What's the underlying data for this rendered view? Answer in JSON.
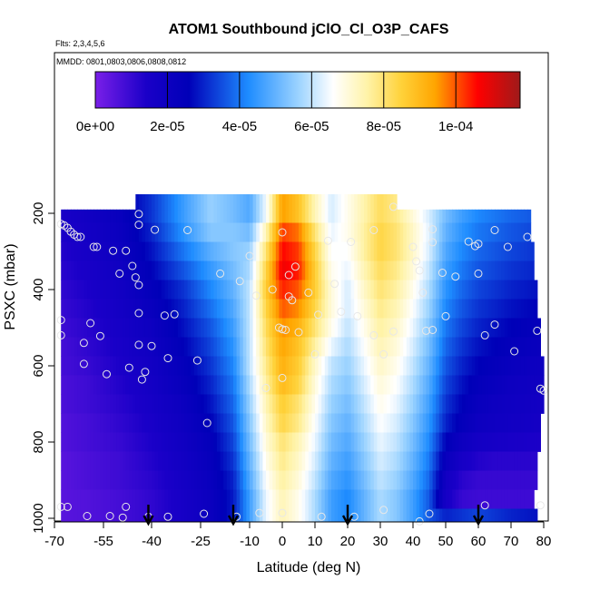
{
  "chart_data": {
    "type": "heatmap",
    "title": "ATOM1 Southbound jClO_Cl_O3P_CAFS",
    "subtitle_flts": "Flts: 2,3,4,5,6",
    "subtitle_mmdd": "MMDD: 0801,0803,0806,0808,0812",
    "xlabel": "Latitude (deg N)",
    "ylabel": "PSXC (mbar)",
    "x_ticks": [
      "-70",
      "-55",
      "-40",
      "-25",
      "-10",
      "0",
      "10",
      "20",
      "30",
      "40",
      "50",
      "60",
      "70",
      "80"
    ],
    "y_ticks": [
      "200",
      "400",
      "600",
      "800",
      "1000"
    ],
    "xlim": [
      -70,
      80
    ],
    "ylim": [
      1000,
      0
    ],
    "colorbar": {
      "ticks": [
        "0e+00",
        "2e-05",
        "4e-05",
        "6e-05",
        "8e-05",
        "1e-04"
      ],
      "range": [
        0,
        0.000118
      ]
    },
    "grid": false,
    "arrows_latitude": [
      -41,
      -15,
      20,
      60
    ],
    "field_pressure_rows_mbar": [
      200,
      250,
      300,
      350,
      400,
      450,
      500,
      550,
      600,
      650,
      700,
      750,
      800,
      850,
      900,
      950,
      1000
    ],
    "field_latitude_nodes": [
      -68,
      -60,
      -50,
      -40,
      -30,
      -22,
      -15,
      -10,
      -5,
      0,
      5,
      10,
      15,
      20,
      25,
      30,
      35,
      40,
      45,
      50,
      55,
      60,
      65,
      70,
      78
    ],
    "field_values_e5": [
      [
        1.5,
        1.8,
        2.2,
        3.2,
        4.6,
        5.6,
        5.2,
        4.8,
        6.5,
        9.5,
        8.8,
        7.4,
        6.2,
        6.8,
        7.5,
        8.2,
        7.8,
        7.0,
        6.2,
        5.2,
        4.6,
        4.2,
        4.0,
        3.8,
        3.6
      ],
      [
        1.4,
        1.7,
        2.1,
        3.0,
        4.4,
        5.4,
        5.4,
        5.2,
        7.4,
        10.2,
        9.8,
        8.0,
        6.4,
        6.8,
        7.6,
        8.4,
        8.0,
        7.2,
        6.3,
        5.0,
        4.4,
        4.0,
        3.8,
        3.6,
        3.4
      ],
      [
        1.3,
        1.6,
        2.0,
        2.8,
        4.0,
        4.9,
        5.4,
        5.6,
        8.0,
        10.6,
        10.2,
        8.4,
        6.6,
        6.6,
        7.6,
        8.4,
        8.0,
        7.2,
        6.2,
        4.8,
        4.2,
        3.8,
        3.6,
        3.4,
        3.2
      ],
      [
        1.2,
        1.5,
        1.9,
        2.6,
        3.6,
        4.5,
        5.2,
        5.8,
        8.4,
        10.8,
        10.4,
        8.6,
        6.8,
        6.4,
        7.4,
        8.2,
        7.8,
        7.0,
        6.0,
        4.6,
        4.0,
        3.6,
        3.4,
        3.2,
        3.0
      ],
      [
        1.1,
        1.4,
        1.8,
        2.4,
        3.2,
        4.2,
        5.0,
        6.0,
        8.6,
        10.4,
        10.0,
        8.6,
        7.0,
        6.2,
        7.2,
        8.0,
        7.6,
        6.8,
        5.8,
        4.4,
        3.8,
        3.4,
        3.2,
        3.0,
        2.8
      ],
      [
        1.0,
        1.3,
        1.7,
        2.2,
        3.0,
        3.9,
        4.8,
        6.0,
        8.4,
        10.0,
        9.6,
        8.4,
        7.0,
        6.2,
        7.0,
        7.8,
        7.4,
        6.6,
        5.6,
        4.2,
        3.6,
        3.2,
        3.0,
        2.8,
        2.6
      ],
      [
        0.9,
        1.2,
        1.6,
        2.0,
        2.8,
        3.6,
        4.6,
        6.0,
        8.2,
        9.6,
        9.2,
        8.0,
        6.8,
        6.0,
        6.8,
        7.6,
        7.2,
        6.4,
        5.4,
        4.0,
        3.4,
        3.0,
        2.8,
        2.6,
        2.4
      ],
      [
        0.8,
        1.1,
        1.5,
        1.9,
        2.6,
        3.4,
        4.4,
        6.0,
        8.0,
        9.4,
        8.8,
        7.6,
        6.4,
        5.8,
        6.6,
        7.4,
        7.0,
        6.2,
        5.2,
        3.8,
        3.2,
        2.8,
        2.6,
        2.4,
        2.2
      ],
      [
        0.8,
        1.0,
        1.4,
        1.8,
        2.4,
        3.2,
        4.2,
        6.0,
        7.8,
        9.2,
        8.6,
        7.2,
        6.0,
        5.6,
        6.4,
        7.2,
        6.8,
        6.0,
        5.0,
        3.6,
        3.0,
        2.6,
        2.4,
        2.2,
        2.0
      ],
      [
        0.7,
        0.9,
        1.3,
        1.7,
        2.3,
        3.0,
        4.0,
        5.8,
        7.6,
        9.0,
        8.4,
        7.0,
        5.8,
        5.4,
        6.2,
        7.0,
        6.6,
        5.8,
        4.8,
        3.4,
        2.8,
        2.4,
        2.2,
        2.0,
        1.9
      ],
      [
        0.7,
        0.9,
        1.2,
        1.6,
        2.1,
        2.8,
        3.8,
        5.6,
        7.4,
        8.6,
        8.0,
        6.8,
        5.6,
        5.2,
        6.0,
        6.8,
        6.4,
        5.6,
        4.6,
        3.2,
        2.6,
        2.2,
        2.0,
        1.9,
        1.8
      ],
      [
        0.6,
        0.8,
        1.1,
        1.5,
        2.0,
        2.6,
        3.6,
        5.4,
        7.2,
        8.4,
        7.8,
        6.6,
        5.4,
        5.0,
        5.8,
        6.6,
        6.2,
        5.4,
        4.4,
        3.0,
        2.4,
        2.0,
        1.9,
        1.8,
        1.7
      ],
      [
        0.6,
        0.8,
        1.0,
        1.4,
        1.9,
        2.4,
        3.4,
        5.2,
        7.0,
        8.0,
        7.4,
        6.4,
        5.2,
        4.8,
        5.6,
        6.4,
        6.0,
        5.2,
        4.2,
        2.6,
        2.0,
        1.7,
        1.6,
        1.5,
        1.4
      ],
      [
        0.5,
        0.7,
        0.9,
        1.3,
        1.8,
        2.3,
        3.2,
        5.0,
        6.8,
        7.8,
        7.2,
        6.2,
        5.0,
        4.6,
        5.4,
        6.2,
        5.8,
        5.0,
        4.0,
        2.2,
        1.6,
        1.3,
        1.2,
        1.2,
        1.2
      ],
      [
        0.5,
        0.7,
        0.9,
        1.2,
        1.7,
        2.2,
        3.0,
        4.8,
        6.6,
        7.6,
        7.0,
        6.0,
        4.8,
        4.4,
        5.2,
        6.0,
        5.6,
        4.8,
        3.8,
        1.8,
        1.2,
        1.0,
        1.0,
        1.0,
        1.0
      ],
      [
        0.5,
        0.6,
        0.8,
        1.1,
        1.6,
        2.1,
        2.9,
        4.6,
        6.4,
        7.4,
        6.8,
        5.8,
        4.6,
        4.2,
        5.0,
        5.8,
        5.4,
        4.6,
        3.6,
        1.6,
        1.0,
        0.9,
        0.9,
        0.9,
        0.9
      ],
      [
        0.5,
        0.6,
        0.8,
        1.1,
        1.6,
        2.1,
        2.9,
        4.6,
        6.4,
        7.4,
        6.8,
        5.8,
        4.6,
        4.2,
        5.0,
        5.8,
        5.4,
        4.6,
        3.6,
        3.0,
        3.2,
        3.4,
        3.2,
        3.0,
        2.8
      ]
    ],
    "obs_points": [
      [
        -68,
        228
      ],
      [
        -67,
        232
      ],
      [
        -66,
        238
      ],
      [
        -65,
        248
      ],
      [
        -64,
        256
      ],
      [
        -63,
        262
      ],
      [
        -62,
        262
      ],
      [
        -58,
        288
      ],
      [
        -57,
        288
      ],
      [
        -52,
        298
      ],
      [
        -48,
        298
      ],
      [
        -50,
        358
      ],
      [
        -46,
        338
      ],
      [
        -44,
        388
      ],
      [
        -45,
        368
      ],
      [
        -44,
        462
      ],
      [
        -44,
        545
      ],
      [
        -40,
        548
      ],
      [
        -42,
        616
      ],
      [
        -43,
        636
      ],
      [
        -56,
        522
      ],
      [
        -59,
        488
      ],
      [
        -54,
        622
      ],
      [
        -47,
        605
      ],
      [
        -61,
        595
      ],
      [
        -61,
        540
      ],
      [
        -68,
        480
      ],
      [
        -68,
        520
      ],
      [
        -44,
        202
      ],
      [
        -39,
        243
      ],
      [
        -29,
        244
      ],
      [
        -33,
        465
      ],
      [
        -36,
        468
      ],
      [
        -35,
        580
      ],
      [
        -26,
        586
      ],
      [
        -23,
        750
      ],
      [
        -19,
        358
      ],
      [
        -13,
        378
      ],
      [
        -10,
        312
      ],
      [
        -8,
        416
      ],
      [
        -1,
        500
      ],
      [
        0,
        504
      ],
      [
        1,
        506
      ],
      [
        2,
        418
      ],
      [
        3,
        428
      ],
      [
        4,
        340
      ],
      [
        0,
        250
      ],
      [
        2,
        362
      ],
      [
        -3,
        400
      ],
      [
        0,
        632
      ],
      [
        -5,
        658
      ],
      [
        5,
        512
      ],
      [
        8,
        408
      ],
      [
        11,
        466
      ],
      [
        10,
        570
      ],
      [
        16,
        385
      ],
      [
        14,
        272
      ],
      [
        21,
        275
      ],
      [
        18,
        458
      ],
      [
        23,
        470
      ],
      [
        28,
        520
      ],
      [
        31,
        570
      ],
      [
        34,
        510
      ],
      [
        28,
        244
      ],
      [
        34,
        183
      ],
      [
        40,
        288
      ],
      [
        44,
        508
      ],
      [
        46,
        506
      ],
      [
        46,
        242
      ],
      [
        46,
        276
      ],
      [
        41,
        326
      ],
      [
        42,
        350
      ],
      [
        43,
        408
      ],
      [
        49,
        356
      ],
      [
        50,
        470
      ],
      [
        53,
        366
      ],
      [
        57,
        274
      ],
      [
        59,
        286
      ],
      [
        60,
        280
      ],
      [
        60,
        358
      ],
      [
        62,
        520
      ],
      [
        65,
        492
      ],
      [
        65,
        244
      ],
      [
        69,
        288
      ],
      [
        71,
        562
      ],
      [
        75,
        262
      ],
      [
        78,
        508
      ],
      [
        79,
        660
      ],
      [
        80,
        665
      ],
      [
        79,
        966
      ],
      [
        62,
        966
      ],
      [
        45,
        988
      ],
      [
        42,
        1008
      ],
      [
        31,
        978
      ],
      [
        22,
        996
      ],
      [
        12,
        996
      ],
      [
        0,
        986
      ],
      [
        -7,
        986
      ],
      [
        -14,
        996
      ],
      [
        -24,
        988
      ],
      [
        -35,
        996
      ],
      [
        -41,
        996
      ],
      [
        -49,
        998
      ],
      [
        -53,
        994
      ],
      [
        -60,
        994
      ],
      [
        -68,
        970
      ],
      [
        -48,
        970
      ],
      [
        -66,
        970
      ],
      [
        -44,
        230
      ]
    ]
  }
}
